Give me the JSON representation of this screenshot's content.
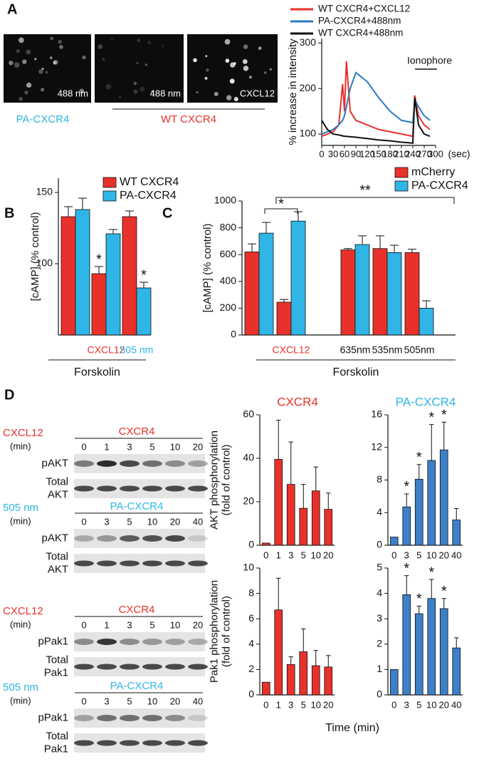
{
  "panels": [
    "A",
    "B",
    "C",
    "D"
  ],
  "panel_a": {
    "images": [
      "488 nm",
      "488 nm",
      "CXCL12"
    ],
    "groups": [
      "PA-CXCR4",
      "WT CXCR4"
    ]
  },
  "blots": [
    {
      "treatment": "CXCL12",
      "receptor": "CXCR4",
      "unit": "(min)",
      "lanes": [
        "0",
        "1",
        "3",
        "5",
        "10",
        "20"
      ],
      "rows": [
        [
          "pAKT"
        ],
        [
          "Total",
          "AKT"
        ]
      ]
    },
    {
      "treatment": "505 nm",
      "receptor": "PA-CXCR4",
      "unit": "(min)",
      "lanes": [
        "0",
        "3",
        "5",
        "10",
        "20",
        "40"
      ],
      "rows": [
        [
          "pAKT"
        ],
        [
          "Total",
          "AKT"
        ]
      ]
    },
    {
      "treatment": "CXCL12",
      "receptor": "CXCR4",
      "unit": "(min)",
      "lanes": [
        "0",
        "1",
        "3",
        "5",
        "10",
        "20"
      ],
      "rows": [
        [
          "pPak1"
        ],
        [
          "Total",
          "Pak1"
        ]
      ]
    },
    {
      "treatment": "505 nm",
      "receptor": "PA-CXCR4",
      "unit": "(min)",
      "lanes": [
        "0",
        "3",
        "5",
        "10",
        "20",
        "40"
      ],
      "rows": [
        [
          "pPak1"
        ],
        [
          "Total",
          "Pak1"
        ]
      ]
    }
  ],
  "chart_data": [
    {
      "type": "line",
      "ylabel": [
        "% increase in intensity"
      ],
      "x_unit": "(sec)",
      "annotation": "Ionophore",
      "x": [
        0,
        15,
        30,
        45,
        55,
        60,
        65,
        75,
        90,
        120,
        150,
        180,
        210,
        240,
        245,
        255,
        270,
        285
      ],
      "series": [
        {
          "name": "WT CXCR4+CXCL12",
          "color": "#e8312a",
          "values": [
            95,
            100,
            105,
            120,
            210,
            150,
            260,
            150,
            130,
            120,
            110,
            105,
            100,
            95,
            185,
            140,
            120,
            110
          ]
        },
        {
          "name": "PA-CXCR4+488nm",
          "color": "#2a7bc4",
          "values": [
            100,
            105,
            110,
            120,
            130,
            140,
            160,
            200,
            235,
            215,
            180,
            150,
            130,
            125,
            175,
            160,
            140,
            130
          ]
        },
        {
          "name": "WT CXCR4+488nm",
          "color": "#111111",
          "values": [
            130,
            110,
            100,
            98,
            96,
            95,
            95,
            94,
            93,
            90,
            87,
            85,
            82,
            80,
            180,
            120,
            100,
            95
          ]
        }
      ],
      "xlim": [
        0,
        300
      ],
      "xticks": [
        0,
        30,
        60,
        90,
        120,
        150,
        180,
        210,
        240,
        270,
        300
      ],
      "ylim": [
        75,
        310
      ],
      "yticks": [
        100,
        200,
        300
      ]
    },
    {
      "type": "bar",
      "ylabel": [
        "[cAMP] (% control)"
      ],
      "group_label": "Forskolin",
      "categories": [
        null,
        "CXCL12",
        "505 nm"
      ],
      "category_colors": [
        null,
        "#e8312a",
        "#2fb5e6"
      ],
      "series": [
        {
          "name": "WT CXCR4",
          "color": "#e8312a",
          "values": [
            133,
            93,
            133
          ],
          "errors": [
            7,
            5,
            4
          ],
          "significance": [
            null,
            "*",
            null
          ]
        },
        {
          "name": "PA-CXCR4",
          "color": "#2fb5e6",
          "values": [
            138,
            121,
            83
          ],
          "errors": [
            8,
            3,
            4
          ],
          "significance": [
            null,
            null,
            "*"
          ]
        }
      ],
      "ylim": [
        50,
        160
      ],
      "yticks": [
        100,
        150
      ]
    },
    {
      "type": "bar",
      "ylabel": [
        "[cAMP] (% control)"
      ],
      "group_label": "Forskolin",
      "annotations": [
        "*",
        "**"
      ],
      "categories": [
        null,
        "CXCL12",
        "635nm",
        "535nm",
        "505nm"
      ],
      "category_colors": [
        null,
        "#e8312a",
        "#111111",
        "#111111",
        "#111111"
      ],
      "series": [
        {
          "name": "mCherry",
          "color": "#e8312a",
          "values": [
            620,
            245,
            635,
            645,
            615
          ],
          "errors": [
            60,
            20,
            10,
            95,
            25
          ]
        },
        {
          "name": "PA-CXCR4",
          "color": "#2fb5e6",
          "values": [
            760,
            850,
            675,
            615,
            200
          ],
          "errors": [
            80,
            70,
            65,
            55,
            55
          ]
        }
      ],
      "ylim": [
        0,
        1000
      ],
      "yticks": [
        0,
        200,
        400,
        600,
        800,
        1000
      ]
    },
    {
      "type": "bar",
      "title": "CXCR4",
      "title_color": "#e8312a",
      "ylabel": [
        "AKT phosphorylation",
        "(fold  of  control)"
      ],
      "categories": [
        "0",
        "1",
        "3",
        "5",
        "10",
        "20"
      ],
      "color": "#e8312a",
      "values": [
        1,
        39.5,
        28,
        17,
        25,
        16.5
      ],
      "errors": [
        0,
        18,
        19.5,
        11,
        11,
        7.5
      ],
      "ylim": [
        0,
        60
      ],
      "yticks": [
        0,
        20,
        40,
        60
      ]
    },
    {
      "type": "bar",
      "title": "PA-CXCR4",
      "title_color": "#2fb5e6",
      "categories": [
        "0",
        "3",
        "5",
        "10",
        "20",
        "40"
      ],
      "color": "#3d7fc8",
      "values": [
        1,
        4.7,
        8.1,
        10.4,
        11.7,
        3.1
      ],
      "errors": [
        0,
        1.6,
        1.8,
        4.4,
        3.4,
        1.4
      ],
      "significance": [
        null,
        "*",
        "*",
        "*",
        "*",
        null
      ],
      "ylim": [
        0,
        16
      ],
      "yticks": [
        0,
        4,
        8,
        12,
        16
      ]
    },
    {
      "type": "bar",
      "ylabel": [
        "Pak1 phosphorylation",
        "(fold of control)"
      ],
      "categories": [
        "0",
        "1",
        "3",
        "5",
        "10",
        "20"
      ],
      "color": "#e8312a",
      "values": [
        1,
        6.7,
        2.4,
        3.4,
        2.3,
        2.2
      ],
      "errors": [
        0,
        2.5,
        0.6,
        1.8,
        1.2,
        0.9
      ],
      "ylim": [
        0,
        10
      ],
      "yticks": [
        0,
        2,
        4,
        6,
        8,
        10
      ]
    },
    {
      "type": "bar",
      "xlabel": "Time (min)",
      "categories": [
        "0",
        "3",
        "5",
        "10",
        "20",
        "40"
      ],
      "color": "#3d7fc8",
      "values": [
        1,
        3.95,
        3.2,
        3.8,
        3.4,
        1.85
      ],
      "errors": [
        0,
        0.75,
        0.3,
        0.75,
        0.4,
        0.4
      ],
      "significance": [
        null,
        "*",
        "*",
        "*",
        "*",
        null
      ],
      "ylim": [
        0,
        5
      ],
      "yticks": [
        0,
        1,
        2,
        3,
        4,
        5
      ]
    }
  ]
}
